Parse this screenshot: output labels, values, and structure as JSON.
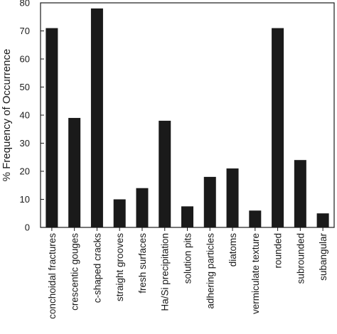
{
  "chart_data": {
    "type": "bar",
    "ylabel": "% Frequency of Occurrence",
    "xlabel": "",
    "ylim": [
      0,
      80
    ],
    "yticks": [
      0,
      10,
      20,
      30,
      40,
      50,
      60,
      70,
      80
    ],
    "categories": [
      "conchoidal fractures",
      "crescentic gouges",
      "c-shaped cracks",
      "straight grooves",
      "fresh surfaces",
      "Ha/Si precipitation",
      "solution pits",
      "adhering particles",
      "diatoms",
      "vermiculate texture",
      "rounded",
      "subrounded",
      "subangular"
    ],
    "values": [
      71,
      39,
      78,
      10,
      14,
      38,
      7.5,
      18,
      21,
      6,
      71,
      24,
      5
    ],
    "bar_color": "#1a1a1a",
    "grid": false
  }
}
